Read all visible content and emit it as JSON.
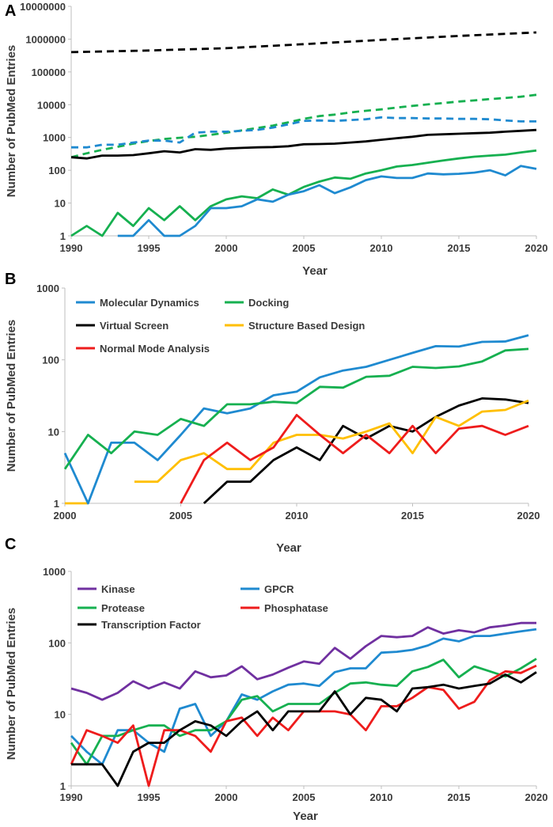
{
  "chart_data": [
    {
      "panel": "A",
      "type": "line",
      "yscale": "log",
      "xlabel": "Year",
      "ylabel": "Number of PubMed Entries",
      "xlim": [
        1990,
        2020
      ],
      "ylim": [
        1,
        10000000
      ],
      "xticks": [
        "1990",
        "1995",
        "2000",
        "2005",
        "2010",
        "2015",
        "2020"
      ],
      "yticks": [
        "1",
        "10",
        "100",
        "1000",
        "10000",
        "100000",
        "1000000",
        "10000000"
      ],
      "series": [
        {
          "name": "total (dashed black)",
          "color": "#000000",
          "dash": true,
          "x": [
            1990,
            1995,
            2000,
            2005,
            2010,
            2015,
            2020
          ],
          "values": [
            400000,
            450000,
            530000,
            700000,
            950000,
            1250000,
            1600000
          ]
        },
        {
          "name": "green dashed",
          "color": "#16b050",
          "dash": true,
          "x": [
            1990,
            1991,
            1992,
            1993,
            1994,
            1995,
            1996,
            1997,
            1998,
            1999,
            2000,
            2001,
            2002,
            2003,
            2004,
            2005,
            2006,
            2007,
            2008,
            2009,
            2010,
            2011,
            2012,
            2013,
            2014,
            2015,
            2016,
            2017,
            2018,
            2019,
            2020
          ],
          "values": [
            250,
            330,
            420,
            520,
            650,
            780,
            900,
            980,
            1050,
            1200,
            1400,
            1650,
            1950,
            2300,
            2900,
            3700,
            4500,
            5000,
            5800,
            6500,
            7200,
            8200,
            9200,
            10200,
            11200,
            12500,
            13500,
            14800,
            16000,
            17500,
            20000
          ]
        },
        {
          "name": "blue dashed",
          "color": "#1f8ad0",
          "dash": true,
          "x": [
            1990,
            1991,
            1992,
            1993,
            1994,
            1995,
            1996,
            1997,
            1998,
            1999,
            2000,
            2001,
            2002,
            2003,
            2004,
            2005,
            2006,
            2007,
            2008,
            2009,
            2010,
            2011,
            2012,
            2013,
            2014,
            2015,
            2016,
            2017,
            2018,
            2019,
            2020
          ],
          "values": [
            500,
            500,
            600,
            600,
            700,
            800,
            800,
            700,
            1400,
            1500,
            1500,
            1600,
            1700,
            2000,
            2500,
            3200,
            3300,
            3200,
            3400,
            3600,
            4100,
            3900,
            3900,
            3800,
            3800,
            3700,
            3700,
            3600,
            3300,
            3100,
            3100
          ]
        },
        {
          "name": "black solid",
          "color": "#000000",
          "dash": false,
          "x": [
            1990,
            1991,
            1992,
            1993,
            1994,
            1995,
            1996,
            1997,
            1998,
            1999,
            2000,
            2001,
            2002,
            2003,
            2004,
            2005,
            2006,
            2007,
            2008,
            2009,
            2010,
            2011,
            2012,
            2013,
            2014,
            2015,
            2016,
            2017,
            2018,
            2019,
            2020
          ],
          "values": [
            250,
            230,
            280,
            280,
            290,
            330,
            380,
            350,
            440,
            420,
            460,
            480,
            500,
            510,
            540,
            620,
            630,
            650,
            700,
            760,
            850,
            950,
            1050,
            1200,
            1250,
            1300,
            1350,
            1400,
            1500,
            1600,
            1700
          ]
        },
        {
          "name": "green solid",
          "color": "#16b050",
          "dash": false,
          "x": [
            1990,
            1991,
            1992,
            1993,
            1994,
            1995,
            1996,
            1997,
            1998,
            1999,
            2000,
            2001,
            2002,
            2003,
            2004,
            2005,
            2006,
            2007,
            2008,
            2009,
            2010,
            2011,
            2012,
            2013,
            2014,
            2015,
            2016,
            2017,
            2018,
            2019,
            2020
          ],
          "values": [
            1,
            2,
            1,
            5,
            2,
            7,
            3,
            8,
            3,
            8,
            13,
            16,
            14,
            26,
            18,
            31,
            45,
            60,
            55,
            80,
            100,
            130,
            145,
            170,
            200,
            230,
            260,
            280,
            300,
            350,
            400
          ]
        },
        {
          "name": "blue solid",
          "color": "#1f8ad0",
          "dash": false,
          "x": [
            1993,
            1994,
            1995,
            1996,
            1997,
            1998,
            1999,
            2000,
            2001,
            2002,
            2003,
            2004,
            2005,
            2006,
            2007,
            2008,
            2009,
            2010,
            2011,
            2012,
            2013,
            2014,
            2015,
            2016,
            2017,
            2018,
            2019,
            2020
          ],
          "values": [
            1,
            1,
            3,
            1,
            1,
            2,
            7,
            7,
            8,
            13,
            11,
            18,
            23,
            35,
            20,
            30,
            50,
            65,
            58,
            58,
            80,
            75,
            78,
            85,
            100,
            70,
            135,
            110
          ]
        }
      ]
    },
    {
      "panel": "B",
      "type": "line",
      "yscale": "log",
      "xlabel": "Year",
      "ylabel": "Number of PubMed Entries",
      "xlim": [
        2000,
        2020
      ],
      "ylim": [
        1,
        1000
      ],
      "xticks": [
        "2000",
        "2005",
        "2010",
        "2015",
        "2020"
      ],
      "yticks": [
        "1",
        "10",
        "100",
        "1000"
      ],
      "series": [
        {
          "name": "Molecular Dynamics",
          "color": "#1f8ad0",
          "x": [
            2000,
            2001,
            2002,
            2003,
            2004,
            2005,
            2006,
            2007,
            2008,
            2009,
            2010,
            2011,
            2012,
            2013,
            2014,
            2015,
            2016,
            2017,
            2018,
            2019,
            2020
          ],
          "values": [
            5,
            1,
            7,
            7,
            4,
            9,
            21,
            18,
            21,
            32,
            36,
            57,
            71,
            80,
            100,
            125,
            155,
            153,
            178,
            180,
            220
          ]
        },
        {
          "name": "Docking",
          "color": "#16b050",
          "x": [
            2000,
            2001,
            2002,
            2003,
            2004,
            2005,
            2006,
            2007,
            2008,
            2009,
            2010,
            2011,
            2012,
            2013,
            2014,
            2015,
            2016,
            2017,
            2018,
            2019,
            2020
          ],
          "values": [
            3,
            9,
            5,
            10,
            9,
            15,
            12,
            24,
            24,
            26,
            25,
            42,
            41,
            58,
            60,
            80,
            77,
            81,
            95,
            135,
            142
          ]
        },
        {
          "name": "Virtual Screen",
          "color": "#000000",
          "x": [
            2006,
            2007,
            2008,
            2009,
            2010,
            2011,
            2012,
            2013,
            2014,
            2015,
            2016,
            2017,
            2018,
            2019,
            2020
          ],
          "values": [
            1,
            2,
            2,
            4,
            6,
            4,
            12,
            8,
            12,
            10,
            16,
            23,
            29,
            28,
            25
          ]
        },
        {
          "name": "Structure Based Design",
          "color": "#ffbf00",
          "x": [
            2003,
            2004,
            2005,
            2006,
            2007,
            2008,
            2009,
            2010,
            2011,
            2012,
            2013,
            2014,
            2015,
            2016,
            2017,
            2018,
            2019,
            2020
          ],
          "values": [
            2,
            2,
            4,
            5,
            3,
            3,
            7,
            9,
            9,
            8,
            10,
            13,
            5,
            16,
            12,
            19,
            20,
            27
          ]
        },
        {
          "name": "Normal Mode Analysis",
          "color": "#ee1c1c",
          "x": [
            2005,
            2006,
            2007,
            2008,
            2009,
            2010,
            2011,
            2012,
            2013,
            2014,
            2015,
            2016,
            2017,
            2018,
            2019,
            2020
          ],
          "values": [
            1,
            4,
            7,
            4,
            6,
            17,
            9,
            5,
            9,
            5,
            12,
            5,
            11,
            12,
            9,
            12
          ]
        }
      ],
      "extra_segments": [
        {
          "color": "#ffbf00",
          "x": [
            2000,
            2001
          ],
          "values": [
            1,
            1
          ]
        }
      ]
    },
    {
      "panel": "C",
      "type": "line",
      "yscale": "log",
      "xlabel": "Year",
      "ylabel": "Number of PubMed Entries",
      "xlim": [
        1990,
        2020
      ],
      "ylim": [
        1,
        1000
      ],
      "xticks": [
        "1990",
        "1995",
        "2000",
        "2005",
        "2010",
        "2015",
        "2020"
      ],
      "yticks": [
        "1",
        "10",
        "100",
        "1000"
      ],
      "series": [
        {
          "name": "Kinase",
          "color": "#7030a0",
          "x": [
            1990,
            1991,
            1992,
            1993,
            1994,
            1995,
            1996,
            1997,
            1998,
            1999,
            2000,
            2001,
            2002,
            2003,
            2004,
            2005,
            2006,
            2007,
            2008,
            2009,
            2010,
            2011,
            2012,
            2013,
            2014,
            2015,
            2016,
            2017,
            2018,
            2019,
            2020
          ],
          "values": [
            23,
            20,
            16,
            20,
            29,
            23,
            28,
            23,
            40,
            33,
            35,
            47,
            31,
            36,
            45,
            55,
            51,
            85,
            60,
            90,
            125,
            120,
            125,
            165,
            135,
            150,
            140,
            165,
            175,
            190,
            190
          ]
        },
        {
          "name": "GPCR",
          "color": "#1f8ad0",
          "x": [
            1990,
            1991,
            1992,
            1993,
            1994,
            1995,
            1996,
            1997,
            1998,
            1999,
            2000,
            2001,
            2002,
            2003,
            2004,
            2005,
            2006,
            2007,
            2008,
            2009,
            2010,
            2011,
            2012,
            2013,
            2014,
            2015,
            2016,
            2017,
            2018,
            2019,
            2020
          ],
          "values": [
            5,
            3,
            2,
            6,
            6,
            4,
            3,
            12,
            14,
            5,
            8,
            19,
            16,
            21,
            26,
            27,
            25,
            39,
            44,
            44,
            73,
            75,
            80,
            92,
            115,
            105,
            125,
            125,
            135,
            145,
            155
          ]
        },
        {
          "name": "Protease",
          "color": "#16b050",
          "x": [
            1990,
            1991,
            1992,
            1993,
            1994,
            1995,
            1996,
            1997,
            1998,
            1999,
            2000,
            2001,
            2002,
            2003,
            2004,
            2005,
            2006,
            2007,
            2008,
            2009,
            2010,
            2011,
            2012,
            2013,
            2014,
            2015,
            2016,
            2017,
            2018,
            2019,
            2020
          ],
          "values": [
            4,
            2,
            5,
            5,
            6,
            7,
            7,
            5,
            6,
            6,
            8,
            16,
            18,
            11,
            14,
            14,
            14,
            20,
            27,
            28,
            26,
            25,
            40,
            46,
            58,
            33,
            47,
            40,
            34,
            44,
            60
          ]
        },
        {
          "name": "Phosphatase",
          "color": "#ee1c1c",
          "x": [
            1990,
            1991,
            1992,
            1993,
            1994,
            1995,
            1996,
            1997,
            1998,
            1999,
            2000,
            2001,
            2002,
            2003,
            2004,
            2005,
            2006,
            2007,
            2008,
            2009,
            2010,
            2011,
            2012,
            2013,
            2014,
            2015,
            2016,
            2017,
            2018,
            2019,
            2020
          ],
          "values": [
            2,
            6,
            5,
            4,
            7,
            1,
            6,
            6,
            5,
            3,
            8,
            9,
            5,
            9,
            6,
            11,
            11,
            11,
            10,
            6,
            13,
            13,
            17,
            24,
            22,
            12,
            15,
            30,
            40,
            38,
            48
          ]
        },
        {
          "name": "Transcription Factor",
          "color": "#000000",
          "x": [
            1990,
            1991,
            1992,
            1993,
            1994,
            1995,
            1996,
            1997,
            1998,
            1999,
            2000,
            2001,
            2002,
            2003,
            2004,
            2005,
            2006,
            2007,
            2008,
            2009,
            2010,
            2011,
            2012,
            2013,
            2014,
            2015,
            2016,
            2017,
            2018,
            2019,
            2020
          ],
          "values": [
            2,
            2,
            2,
            1,
            3,
            4,
            4,
            6,
            8,
            7,
            5,
            8,
            11,
            6,
            11,
            11,
            11,
            21,
            10,
            17,
            16,
            11,
            23,
            24,
            26,
            23,
            25,
            27,
            36,
            28,
            39
          ]
        }
      ]
    }
  ]
}
